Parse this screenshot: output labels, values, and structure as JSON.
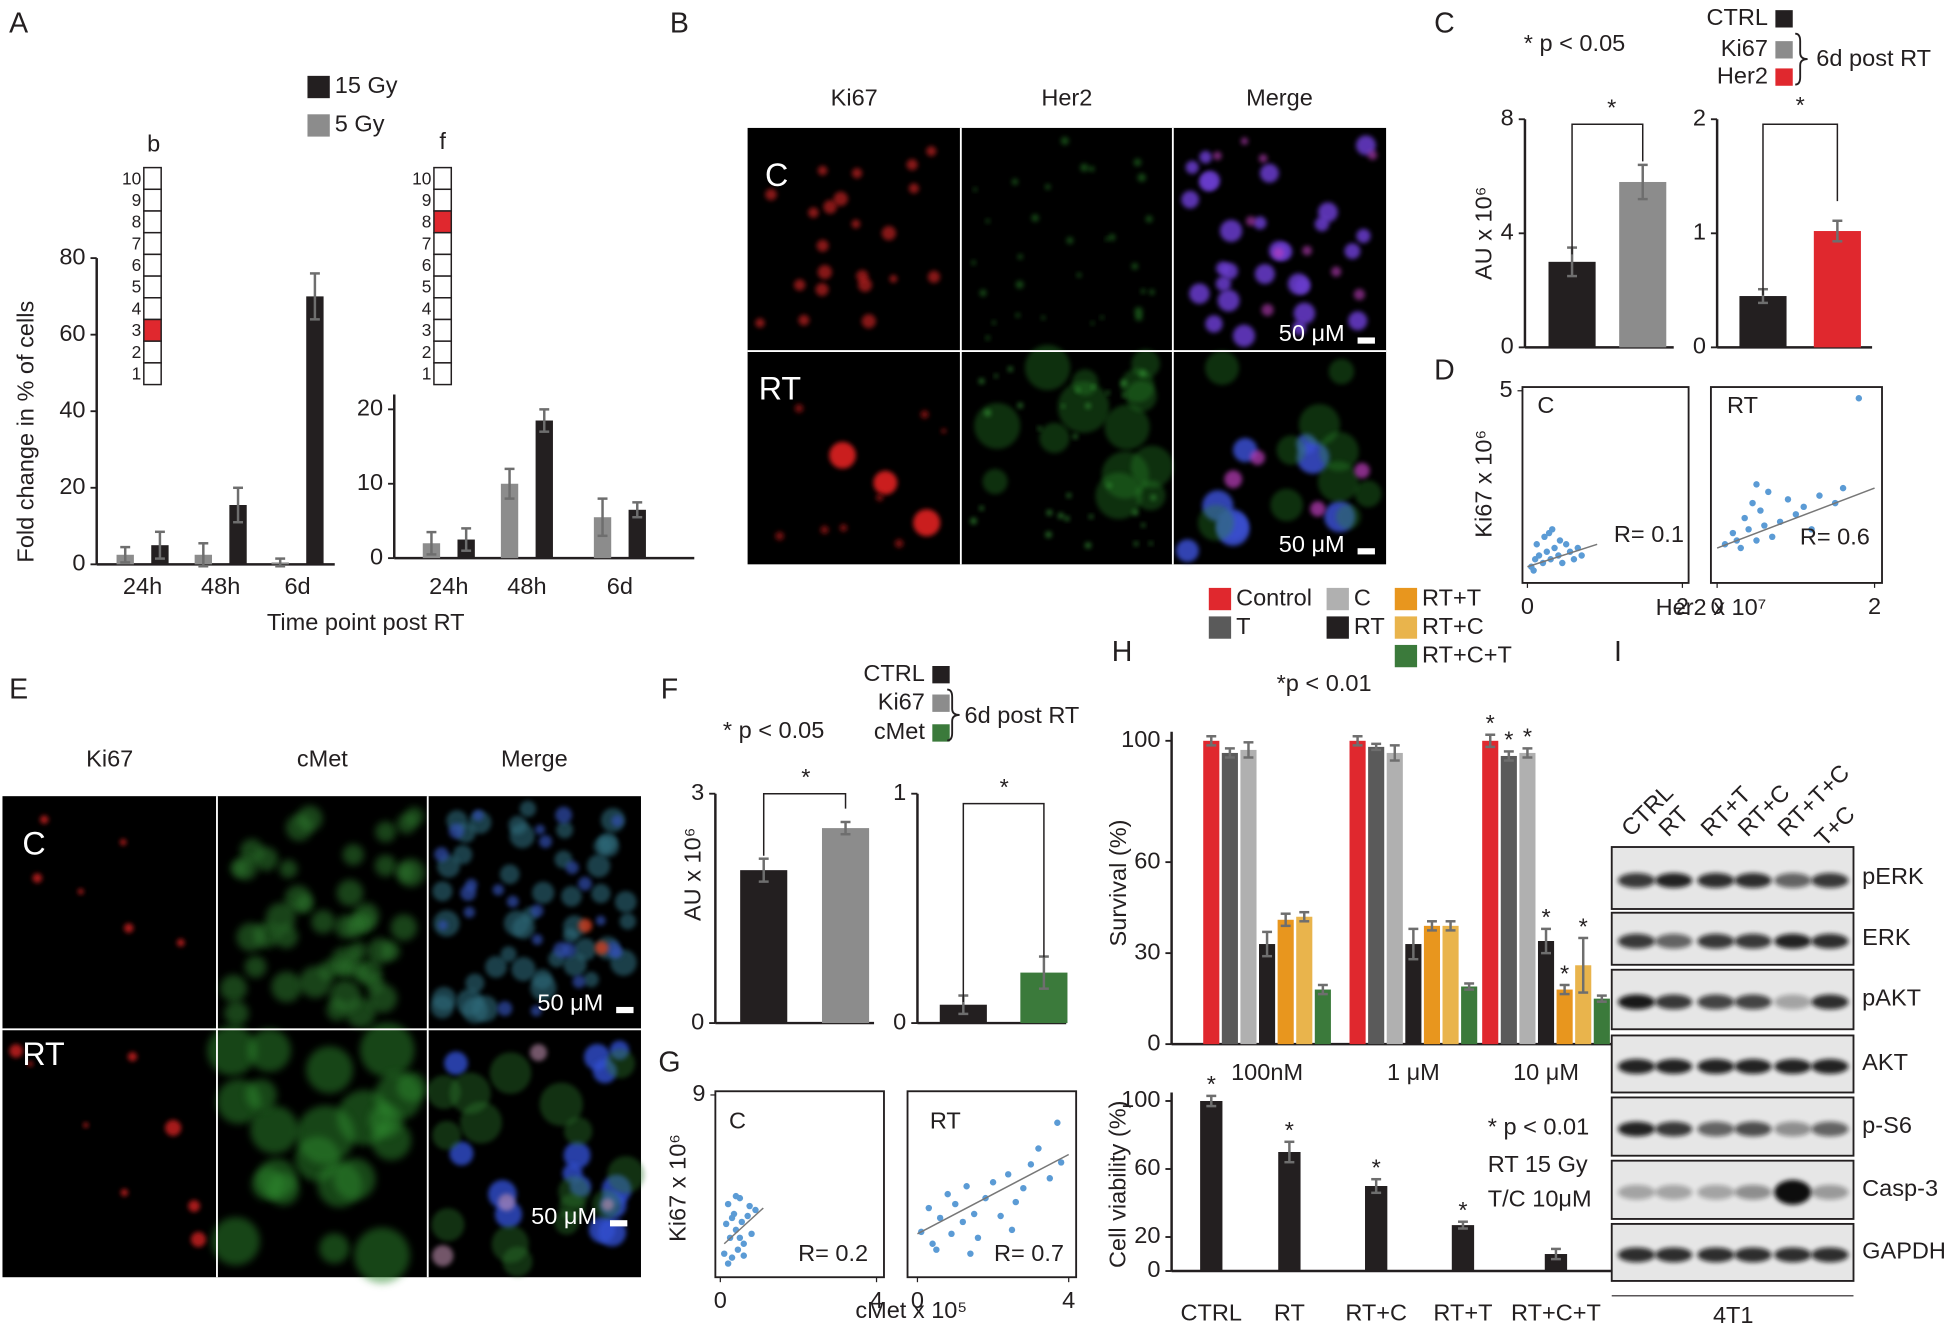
{
  "chart_data": [
    {
      "type": "bar",
      "categories": [
        "24h",
        "48h",
        "6d"
      ],
      "ylim": [
        0,
        80
      ],
      "yticks": [
        0,
        20,
        40,
        60,
        80
      ],
      "ylabel": "Fold change in % of cells",
      "xlabel": "Time point post RT",
      "series": [
        {
          "name": "5 Gy",
          "color": "#8c8c8c",
          "values": [
            2.5,
            2.5,
            0.5
          ],
          "errors": [
            2,
            3,
            1
          ]
        },
        {
          "name": "15 Gy",
          "color": "#231f20",
          "values": [
            5,
            15.5,
            70
          ],
          "errors": [
            3.5,
            4.5,
            6
          ]
        }
      ],
      "inset": {
        "label": "b",
        "levels": [
          10,
          9,
          8,
          7,
          6,
          5,
          4,
          3,
          2,
          1
        ],
        "highlight": 3,
        "color": "#e0282e"
      }
    },
    {
      "type": "bar",
      "categories": [
        "24h",
        "48h",
        "6d"
      ],
      "ylim": [
        0,
        22
      ],
      "yticks": [
        0,
        10,
        20
      ],
      "series": [
        {
          "color": "#8c8c8c",
          "values": [
            2,
            10,
            5.5
          ],
          "errors": [
            1.5,
            2,
            2.5
          ]
        },
        {
          "color": "#231f20",
          "values": [
            2.5,
            18.5,
            6.5
          ],
          "errors": [
            1.5,
            1.5,
            1
          ]
        }
      ],
      "inset": {
        "label": "f",
        "levels": [
          10,
          9,
          8,
          7,
          6,
          5,
          4,
          3,
          2,
          1
        ],
        "highlight": 8,
        "color": "#e0282e"
      }
    },
    {
      "type": "bar",
      "values": [
        3,
        5.8
      ],
      "errors": [
        0.5,
        0.6
      ],
      "colors": [
        "#231f20",
        "#8c8c8c"
      ],
      "ylim": [
        0,
        8
      ],
      "yticks": [
        0,
        4,
        8
      ],
      "ylabel": "AU x 10⁶",
      "bracket_label": "*",
      "note": "* p < 0.05",
      "legend": [
        {
          "name": "CTRL",
          "color": "#231f20"
        },
        {
          "name": "Ki67",
          "color": "#8c8c8c"
        },
        {
          "name": "Her2",
          "color": "#e0282e"
        }
      ],
      "legend_note": "6d post RT"
    },
    {
      "type": "bar",
      "values": [
        0.45,
        1.02
      ],
      "errors": [
        0.06,
        0.09
      ],
      "colors": [
        "#231f20",
        "#e0282e"
      ],
      "ylim": [
        0,
        2
      ],
      "yticks": [
        0,
        1,
        2
      ],
      "bracket_label": "*"
    },
    {
      "type": "scatter",
      "label": "C",
      "annotation": "R= 0.1",
      "color": "#5b9bd5",
      "xlim": [
        0,
        2
      ],
      "ylim": [
        0,
        5
      ],
      "xticks": [
        0,
        2
      ],
      "yticks": [
        5
      ],
      "ylabel": "Ki67 x 10⁶",
      "xlabel": "Her2 x 10⁷",
      "x": [
        0.05,
        0.1,
        0.12,
        0.15,
        0.2,
        0.22,
        0.25,
        0.3,
        0.32,
        0.35,
        0.4,
        0.42,
        0.45,
        0.5,
        0.55,
        0.6,
        0.65,
        0.7,
        0.08,
        0.28
      ],
      "values": [
        0.3,
        0.5,
        0.9,
        0.6,
        0.4,
        1.1,
        0.7,
        0.5,
        1.3,
        0.8,
        0.6,
        1.0,
        0.4,
        0.9,
        0.7,
        0.5,
        0.8,
        0.6,
        0.2,
        1.2
      ],
      "trendline": {
        "x": [
          0,
          0.9
        ],
        "values": [
          0.3,
          0.9
        ]
      }
    },
    {
      "type": "scatter",
      "label": "RT",
      "annotation": "R= 0.6",
      "color": "#5b9bd5",
      "xlim": [
        0,
        2
      ],
      "ylim": [
        0,
        5
      ],
      "xticks": [
        0,
        2
      ],
      "x": [
        0.1,
        0.2,
        0.3,
        0.35,
        0.4,
        0.45,
        0.5,
        0.55,
        0.6,
        0.65,
        0.7,
        0.8,
        0.9,
        1.0,
        1.1,
        1.2,
        1.3,
        1.5,
        1.6,
        1.8,
        0.5,
        0.25
      ],
      "values": [
        0.9,
        1.2,
        0.8,
        1.6,
        1.3,
        2.0,
        1.0,
        1.8,
        1.4,
        2.3,
        1.1,
        1.5,
        2.1,
        1.7,
        1.9,
        1.3,
        2.2,
        2.0,
        2.4,
        4.8,
        2.5,
        1.0
      ],
      "trendline": {
        "x": [
          0,
          2
        ],
        "values": [
          0.8,
          2.4
        ]
      }
    },
    {
      "type": "bar",
      "values": [
        2,
        2.55
      ],
      "errors": [
        0.15,
        0.08
      ],
      "colors": [
        "#231f20",
        "#8c8c8c"
      ],
      "ylim": [
        0,
        3
      ],
      "yticks": [
        0,
        3
      ],
      "ylabel": "AU x 10⁶",
      "bracket_label": "*",
      "note": "* p < 0.05",
      "legend": [
        {
          "name": "CTRL",
          "color": "#231f20"
        },
        {
          "name": "Ki67",
          "color": "#8c8c8c"
        },
        {
          "name": "cMet",
          "color": "#3b7a3b"
        }
      ],
      "legend_note": "6d post RT"
    },
    {
      "type": "bar",
      "values": [
        0.08,
        0.22
      ],
      "errors": [
        0.04,
        0.07
      ],
      "colors": [
        "#231f20",
        "#3b7a3b"
      ],
      "ylim": [
        0,
        1
      ],
      "yticks": [
        0,
        1
      ],
      "bracket_label": "*"
    },
    {
      "type": "scatter",
      "label": "C",
      "annotation": "R= 0.2",
      "color": "#5b9bd5",
      "xlim": [
        0,
        4
      ],
      "ylim": [
        0,
        9
      ],
      "xticks": [
        0,
        4
      ],
      "yticks": [
        9
      ],
      "ylabel": "Ki67 x 10⁶",
      "xlabel": "cMet x 10⁵",
      "x": [
        0.1,
        0.15,
        0.2,
        0.25,
        0.3,
        0.35,
        0.4,
        0.45,
        0.5,
        0.55,
        0.6,
        0.7,
        0.8,
        0.9,
        0.2,
        0.4,
        0.6,
        0.3,
        0.5,
        0.75
      ],
      "values": [
        1,
        2.5,
        3.5,
        1.8,
        0.8,
        3,
        2.2,
        1.2,
        3.8,
        2.6,
        1.5,
        2.9,
        2,
        3.2,
        0.5,
        3.9,
        0.9,
        2.8,
        1.8,
        3.4
      ],
      "trendline": {
        "x": [
          0.1,
          1.1
        ],
        "values": [
          1.5,
          3.3
        ]
      }
    },
    {
      "type": "scatter",
      "label": "RT",
      "annotation": "R= 0.7",
      "color": "#5b9bd5",
      "xlim": [
        0,
        4
      ],
      "ylim": [
        0,
        9
      ],
      "xticks": [
        0,
        4
      ],
      "x": [
        0.1,
        0.3,
        0.4,
        0.6,
        0.8,
        0.9,
        1.0,
        1.2,
        1.3,
        1.5,
        1.6,
        1.8,
        2.0,
        2.2,
        2.4,
        2.6,
        2.8,
        3.0,
        3.2,
        3.5,
        3.7,
        3.8,
        0.5,
        1.4,
        2.5
      ],
      "values": [
        2.1,
        3.3,
        1.5,
        2.8,
        4.0,
        2.0,
        3.5,
        2.6,
        4.4,
        3.0,
        1.8,
        3.8,
        4.6,
        2.9,
        5.0,
        3.6,
        4.3,
        5.5,
        6.3,
        4.8,
        7.6,
        5.6,
        1.2,
        1.0,
        2.2
      ],
      "trendline": {
        "x": [
          0,
          4
        ],
        "values": [
          2,
          6
        ]
      }
    },
    {
      "type": "bar",
      "categories": [
        "100nM",
        "1 μM",
        "10 μM"
      ],
      "ylim": [
        0,
        103
      ],
      "yticks": [
        0,
        30,
        60,
        100
      ],
      "ylabel": "Survival (%)",
      "note": "*p < 0.01",
      "series": [
        {
          "name": "Control",
          "color": "#e0282e",
          "values": [
            100,
            100,
            100
          ],
          "errors": [
            1.5,
            1.5,
            2
          ],
          "markers": [
            null,
            null,
            "*"
          ]
        },
        {
          "name": "T",
          "color": "#5a5a5a",
          "values": [
            96,
            98,
            95
          ],
          "errors": [
            1.5,
            1,
            1.5
          ],
          "markers": [
            null,
            null,
            "*"
          ]
        },
        {
          "name": "C",
          "color": "#b0b0b0",
          "values": [
            97,
            96,
            96
          ],
          "errors": [
            2.5,
            2.5,
            1.5
          ],
          "markers": [
            null,
            null,
            "*"
          ]
        },
        {
          "name": "RT",
          "color": "#231f20",
          "values": [
            33,
            33,
            34
          ],
          "errors": [
            4,
            5,
            4
          ],
          "markers": [
            null,
            null,
            "*"
          ]
        },
        {
          "name": "RT+T",
          "color": "#e8961e",
          "values": [
            41,
            39,
            18
          ],
          "errors": [
            2,
            1.5,
            1.5
          ],
          "markers": [
            null,
            null,
            "*"
          ]
        },
        {
          "name": "RT+C",
          "color": "#e9b44c",
          "values": [
            42,
            39,
            26
          ],
          "errors": [
            1.5,
            1.5,
            9
          ],
          "markers": [
            null,
            null,
            "*"
          ]
        },
        {
          "name": "RT+C+T",
          "color": "#3b7a3b",
          "values": [
            18,
            19,
            15
          ],
          "errors": [
            1.5,
            1,
            1
          ],
          "markers": [
            null,
            null,
            null
          ]
        }
      ]
    },
    {
      "type": "bar",
      "categories": [
        "CTRL",
        "RT",
        "RT+C",
        "RT+T",
        "RT+C+T"
      ],
      "values": [
        100,
        70,
        50,
        27,
        10
      ],
      "errors": [
        3,
        6,
        4,
        2,
        3
      ],
      "markers": [
        "*",
        "*",
        "*",
        "*",
        null
      ],
      "colors": [
        "#231f20",
        "#231f20",
        "#231f20",
        "#231f20",
        "#231f20"
      ],
      "ylim": [
        0,
        105
      ],
      "yticks": [
        0,
        20,
        60,
        100
      ],
      "ylabel": "Cell viability (%)",
      "notes": [
        "* p < 0.01",
        "RT 15 Gy",
        "T/C  10μM"
      ]
    }
  ],
  "figure": {
    "panels": [
      "A",
      "B",
      "C",
      "D",
      "E",
      "F",
      "G",
      "H",
      "I"
    ],
    "micrograph_B": {
      "columns": [
        "Ki67",
        "Her2",
        "Merge"
      ],
      "rows": [
        "C",
        "RT"
      ],
      "scale": [
        "50 μM",
        "50 μM"
      ]
    },
    "micrograph_E": {
      "columns": [
        "Ki67",
        "cMet",
        "Merge"
      ],
      "rows": [
        "C",
        "RT"
      ],
      "scale": [
        "50 μM",
        "50 μM"
      ]
    },
    "blot": {
      "lanes": [
        "CTRL",
        "RT",
        "RT+T",
        "RT+C",
        "RT+T+C",
        "T+C"
      ],
      "rows": [
        "pERK",
        "ERK",
        "pAKT",
        "AKT",
        "p-S6",
        "Casp-3",
        "GAPDH"
      ],
      "cell_line": "4T1"
    }
  }
}
